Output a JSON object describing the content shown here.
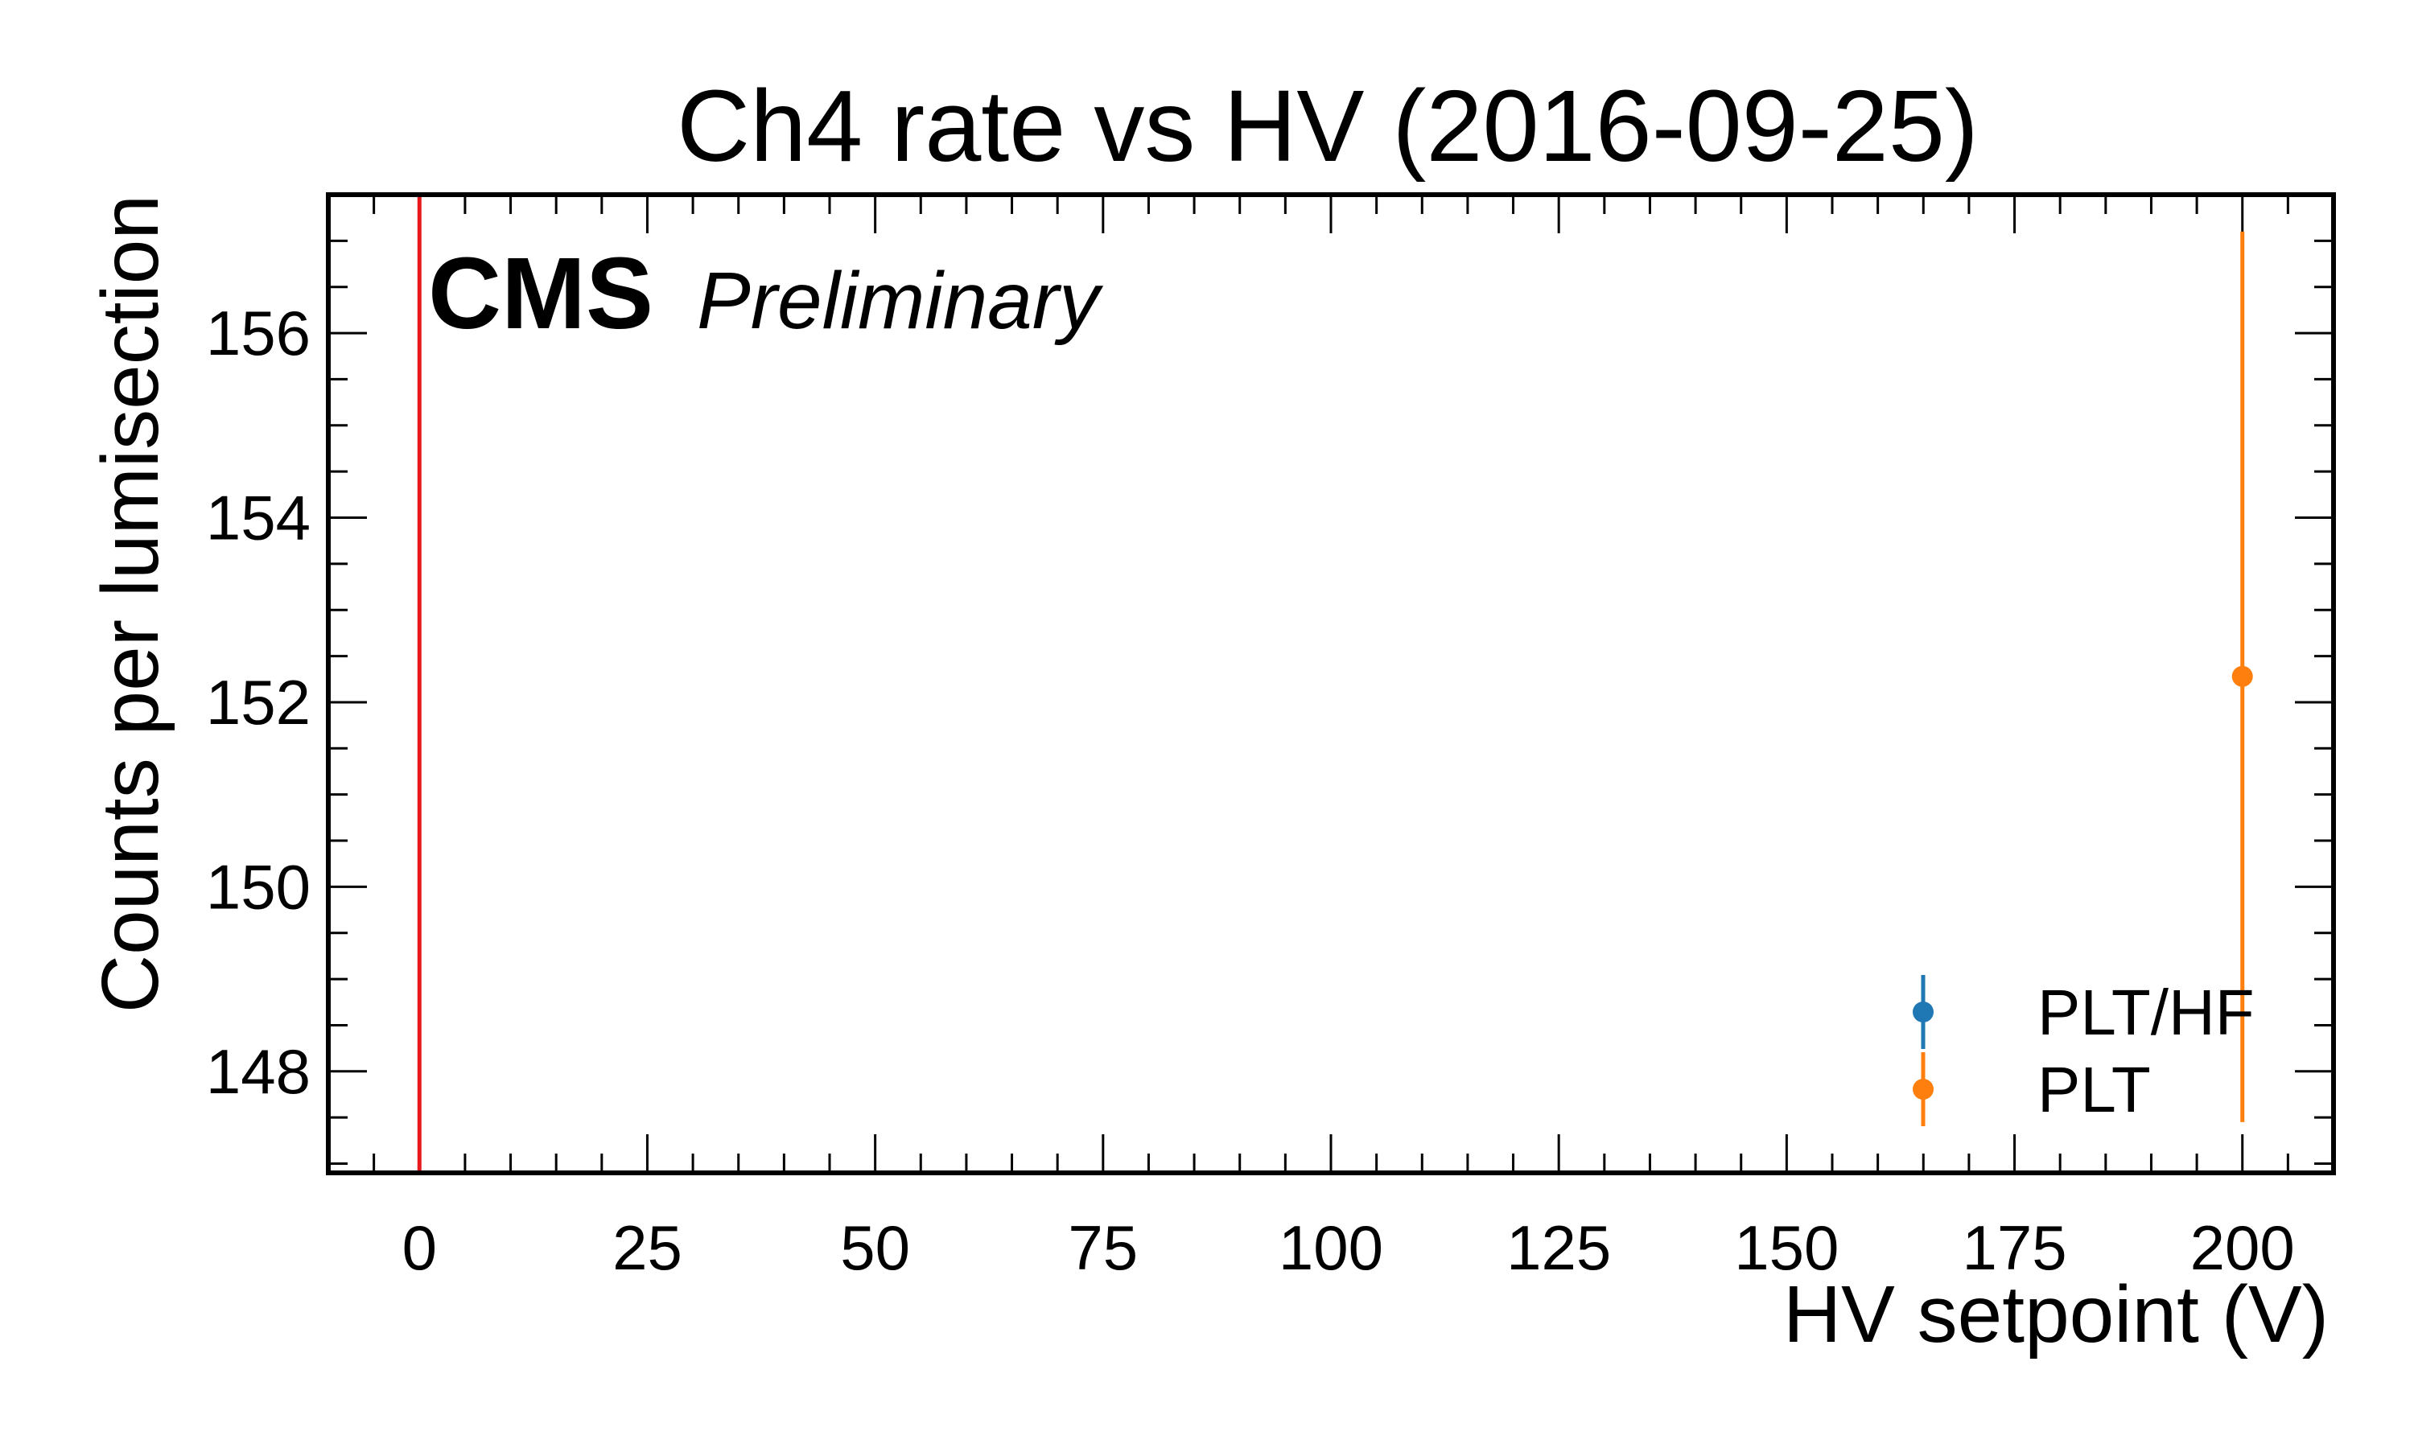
{
  "chart_data": {
    "type": "scatter",
    "title": "Ch4 rate vs HV (2016-09-25)",
    "xlabel": "HV setpoint (V)",
    "ylabel": "Counts per lumisection",
    "xlim": [
      -10,
      210
    ],
    "ylim": [
      146.9,
      157.5
    ],
    "xticks": [
      0,
      25,
      50,
      75,
      100,
      125,
      150,
      175,
      200
    ],
    "yticks": [
      148,
      150,
      152,
      154,
      156
    ],
    "grid": false,
    "legend_position": "lower-right",
    "experiment_label": "CMS",
    "status_label": "Preliminary",
    "reference_line": {
      "x": 0,
      "color": "#e8191c"
    },
    "series": [
      {
        "name": "PLT/HF",
        "color": "#1f77b4",
        "points": []
      },
      {
        "name": "PLT",
        "color": "#ff7f0e",
        "points": [
          {
            "x": 200,
            "y": 152.28,
            "yerr_low": 147.45,
            "yerr_high": 157.1
          }
        ]
      }
    ]
  }
}
